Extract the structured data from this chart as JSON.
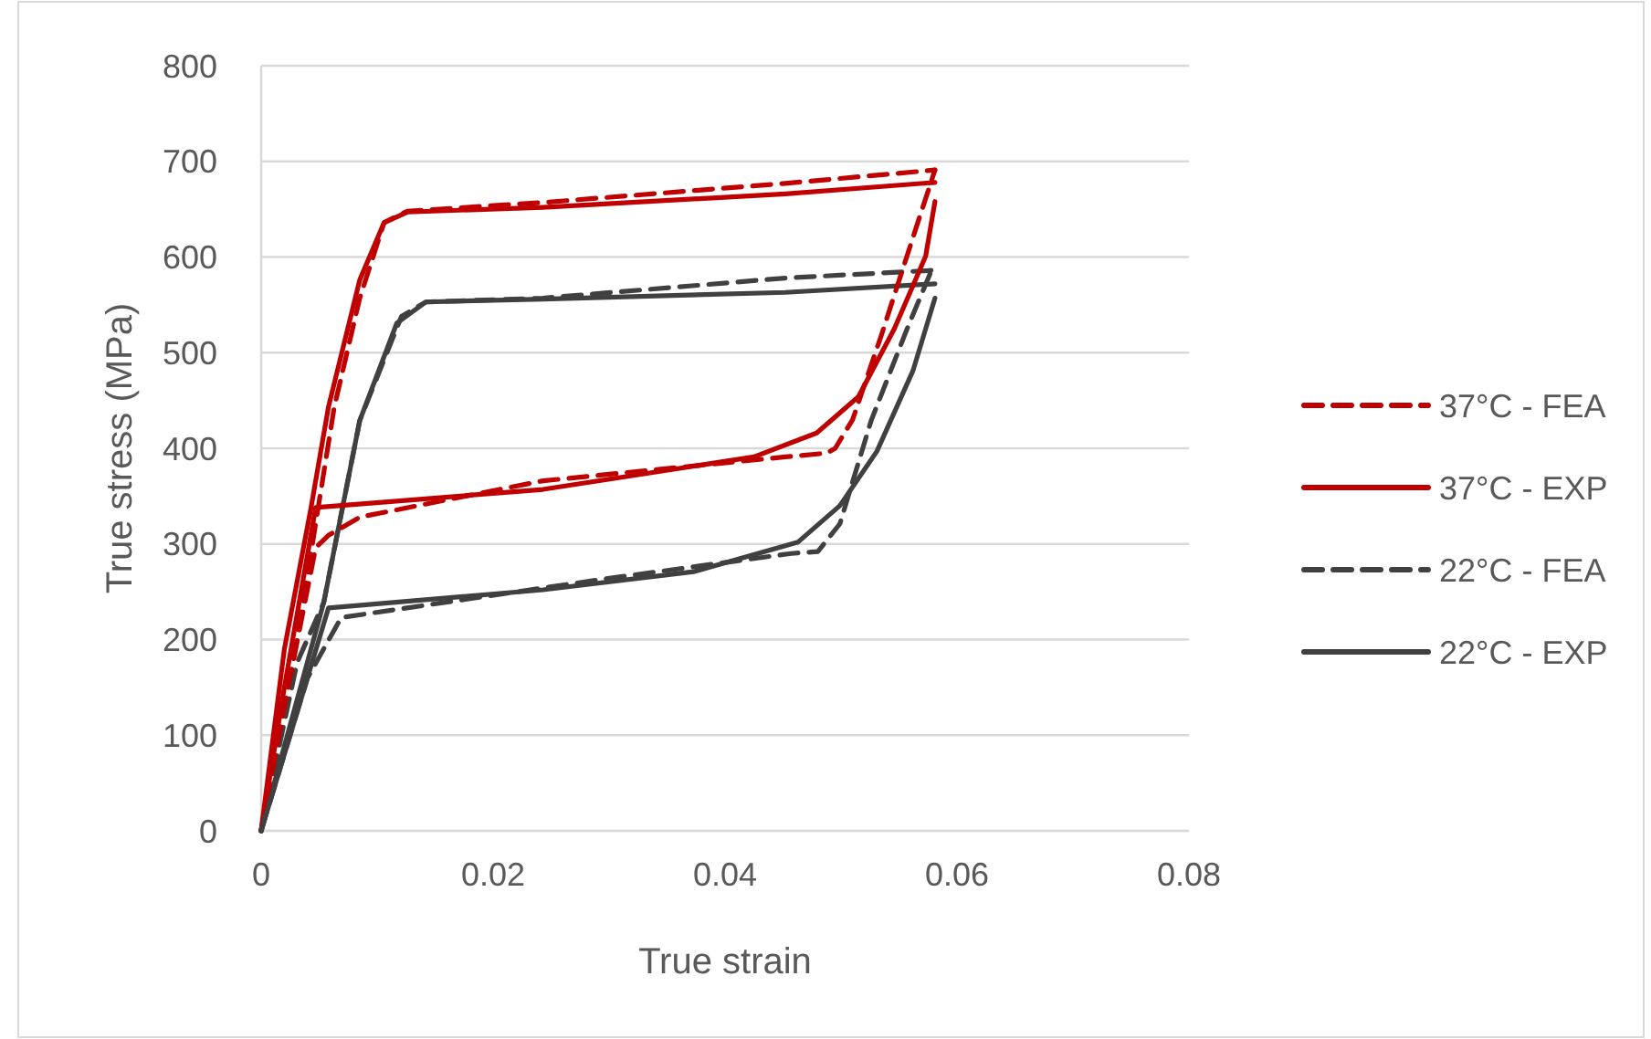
{
  "chart_data": {
    "type": "line",
    "xlabel": "True strain",
    "ylabel": "True stress (MPa)",
    "xlim": [
      0,
      0.08
    ],
    "xticks": [
      0,
      0.02,
      0.04,
      0.06,
      0.08
    ],
    "ylim": [
      0,
      800
    ],
    "yticks": [
      0,
      100,
      200,
      300,
      400,
      500,
      600,
      700,
      800
    ],
    "grid": "y",
    "legend": "right",
    "marker": "none",
    "series": [
      {
        "name": "37°C - FEA",
        "color": "#c00000",
        "line_style": "dashed",
        "x": [
          0,
          0.0031,
          0.0063,
          0.0085,
          0.0106,
          0.0126,
          0.0243,
          0.0452,
          0.0581
        ],
        "values": [
          0,
          200,
          443,
          557,
          636,
          648,
          657,
          677,
          691
        ]
      },
      {
        "name": "37°C - EXP",
        "color": "#c00000",
        "line_style": "solid",
        "x": [
          0,
          0.002,
          0.0043,
          0.0058,
          0.0085,
          0.0106,
          0.0126,
          0.0243,
          0.0452,
          0.0581
        ],
        "values": [
          0,
          190,
          338,
          443,
          576,
          636,
          647,
          652,
          666,
          678
        ]
      },
      {
        "name": "22°C - FEA",
        "color": "#404040",
        "line_style": "dashed",
        "x": [
          0,
          0.0031,
          0.0054,
          0.0085,
          0.0121,
          0.0142,
          0.0243,
          0.0452,
          0.0578
        ],
        "values": [
          0,
          176,
          239,
          429,
          538,
          553,
          557,
          578,
          586
        ]
      },
      {
        "name": "22°C - EXP",
        "color": "#404040",
        "line_style": "solid",
        "x": [
          0,
          0.0054,
          0.0085,
          0.0117,
          0.0142,
          0.0243,
          0.0452,
          0.0581
        ],
        "values": [
          0,
          239,
          429,
          531,
          553,
          556,
          563,
          572
        ]
      },
      {
        "color": "#c00000",
        "line_style": "dashed",
        "x": [
          0,
          0.002,
          0.0047,
          0.0058,
          0.0085,
          0.0243,
          0.0452,
          0.0488,
          0.0495,
          0.051,
          0.0535,
          0.0567,
          0.0581
        ],
        "values": [
          0,
          130,
          296,
          309,
          328,
          366,
          391,
          395,
          400,
          430,
          519,
          639,
          691
        ]
      },
      {
        "color": "#c00000",
        "line_style": "solid",
        "x": [
          0,
          0.002,
          0.0047,
          0.0243,
          0.0425,
          0.0479,
          0.0515,
          0.0546,
          0.0573,
          0.0581
        ],
        "values": [
          0,
          150,
          338,
          357,
          391,
          416,
          454,
          525,
          601,
          658
        ]
      },
      {
        "color": "#404040",
        "line_style": "dashed",
        "x": [
          0,
          0.004,
          0.0069,
          0.0294,
          0.0457,
          0.048,
          0.0499,
          0.0526,
          0.0557,
          0.0578
        ],
        "values": [
          0,
          160,
          223,
          263,
          290,
          292,
          321,
          429,
          525,
          586
        ]
      },
      {
        "color": "#404040",
        "line_style": "solid",
        "x": [
          0,
          0.003,
          0.0058,
          0.0243,
          0.0373,
          0.0463,
          0.0499,
          0.0531,
          0.0562,
          0.0581
        ],
        "values": [
          0,
          120,
          233,
          252,
          271,
          302,
          340,
          397,
          481,
          557
        ]
      }
    ]
  }
}
